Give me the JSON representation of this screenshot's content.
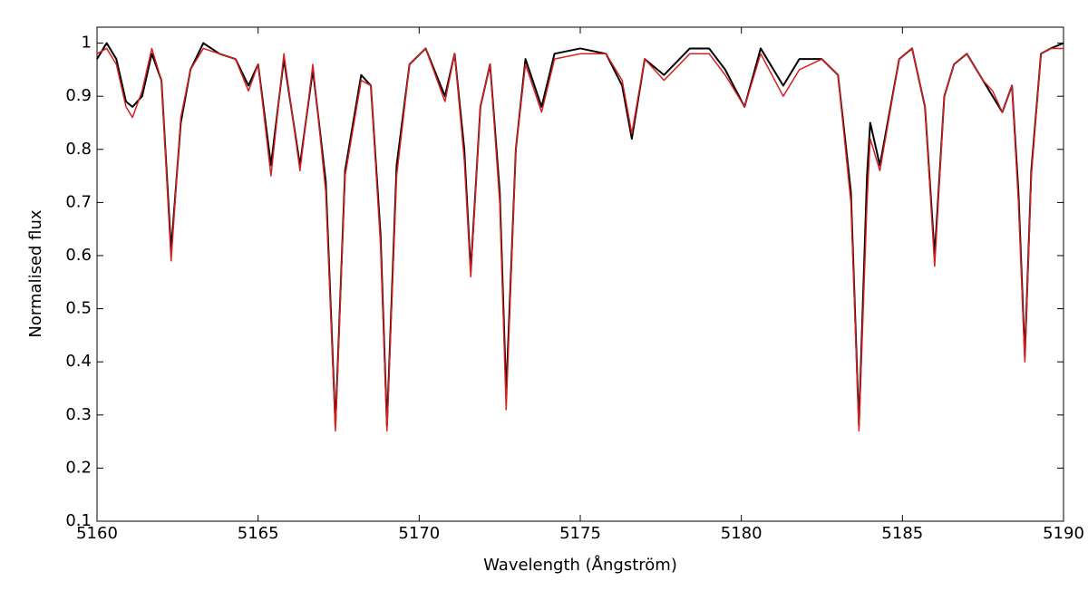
{
  "chart_data": {
    "type": "line",
    "xlabel": "Wavelength (Ångström)",
    "ylabel": "Normalised flux",
    "x": [
      5160.0,
      5160.3,
      5160.6,
      5160.9,
      5161.1,
      5161.4,
      5161.7,
      5162.0,
      5162.3,
      5162.6,
      5162.9,
      5163.3,
      5163.8,
      5164.3,
      5164.7,
      5165.0,
      5165.4,
      5165.8,
      5166.3,
      5166.7,
      5167.1,
      5167.4,
      5167.7,
      5168.2,
      5168.5,
      5168.8,
      5169.0,
      5169.3,
      5169.7,
      5170.2,
      5170.8,
      5171.1,
      5171.4,
      5171.6,
      5171.9,
      5172.2,
      5172.5,
      5172.7,
      5173.0,
      5173.3,
      5173.8,
      5174.2,
      5175.0,
      5175.8,
      5176.3,
      5176.6,
      5177.0,
      5177.6,
      5178.4,
      5179.0,
      5179.5,
      5180.1,
      5180.6,
      5181.3,
      5181.8,
      5182.5,
      5183.0,
      5183.4,
      5183.65,
      5183.9,
      5184.0,
      5184.3,
      5184.9,
      5185.3,
      5185.7,
      5186.0,
      5186.3,
      5186.6,
      5187.0,
      5187.5,
      5187.8,
      5188.1,
      5188.4,
      5188.6,
      5188.8,
      5189.0,
      5189.3,
      5189.6,
      5190.0
    ],
    "series": [
      {
        "color": "#d62020",
        "values": [
          0.98,
          0.99,
          0.96,
          0.88,
          0.86,
          0.91,
          0.99,
          0.93,
          0.59,
          0.86,
          0.95,
          0.99,
          0.98,
          0.97,
          0.91,
          0.96,
          0.75,
          0.98,
          0.76,
          0.96,
          0.72,
          0.27,
          0.75,
          0.93,
          0.92,
          0.62,
          0.27,
          0.75,
          0.96,
          0.99,
          0.89,
          0.98,
          0.78,
          0.56,
          0.88,
          0.96,
          0.7,
          0.31,
          0.8,
          0.96,
          0.87,
          0.97,
          0.98,
          0.98,
          0.93,
          0.83,
          0.97,
          0.93,
          0.98,
          0.98,
          0.94,
          0.88,
          0.98,
          0.9,
          0.95,
          0.97,
          0.94,
          0.7,
          0.27,
          0.7,
          0.82,
          0.76,
          0.97,
          0.99,
          0.88,
          0.58,
          0.9,
          0.96,
          0.98,
          0.93,
          0.91,
          0.87,
          0.92,
          0.7,
          0.4,
          0.75,
          0.98,
          0.99,
          0.99
        ]
      },
      {
        "color": "#000000",
        "values": [
          0.97,
          1.0,
          0.97,
          0.89,
          0.88,
          0.9,
          0.98,
          0.93,
          0.61,
          0.85,
          0.95,
          1.0,
          0.98,
          0.97,
          0.92,
          0.96,
          0.77,
          0.97,
          0.77,
          0.95,
          0.74,
          0.28,
          0.76,
          0.94,
          0.92,
          0.64,
          0.28,
          0.77,
          0.96,
          0.99,
          0.9,
          0.98,
          0.8,
          0.57,
          0.88,
          0.96,
          0.72,
          0.34,
          0.8,
          0.97,
          0.88,
          0.98,
          0.99,
          0.98,
          0.92,
          0.82,
          0.97,
          0.94,
          0.99,
          0.99,
          0.95,
          0.88,
          0.99,
          0.92,
          0.97,
          0.97,
          0.94,
          0.72,
          0.28,
          0.75,
          0.85,
          0.77,
          0.97,
          0.99,
          0.88,
          0.6,
          0.9,
          0.96,
          0.98,
          0.93,
          0.9,
          0.87,
          0.92,
          0.72,
          0.41,
          0.76,
          0.98,
          0.99,
          1.0
        ]
      }
    ],
    "xlim": [
      5160,
      5190
    ],
    "xticks": [
      5160,
      5165,
      5170,
      5175,
      5180,
      5185,
      5190
    ],
    "ylim": [
      0.1,
      1.03
    ],
    "yticks": [
      0.1,
      0.2,
      0.3,
      0.4,
      0.5,
      0.6,
      0.7,
      0.8,
      0.9,
      1
    ],
    "grid": false
  }
}
